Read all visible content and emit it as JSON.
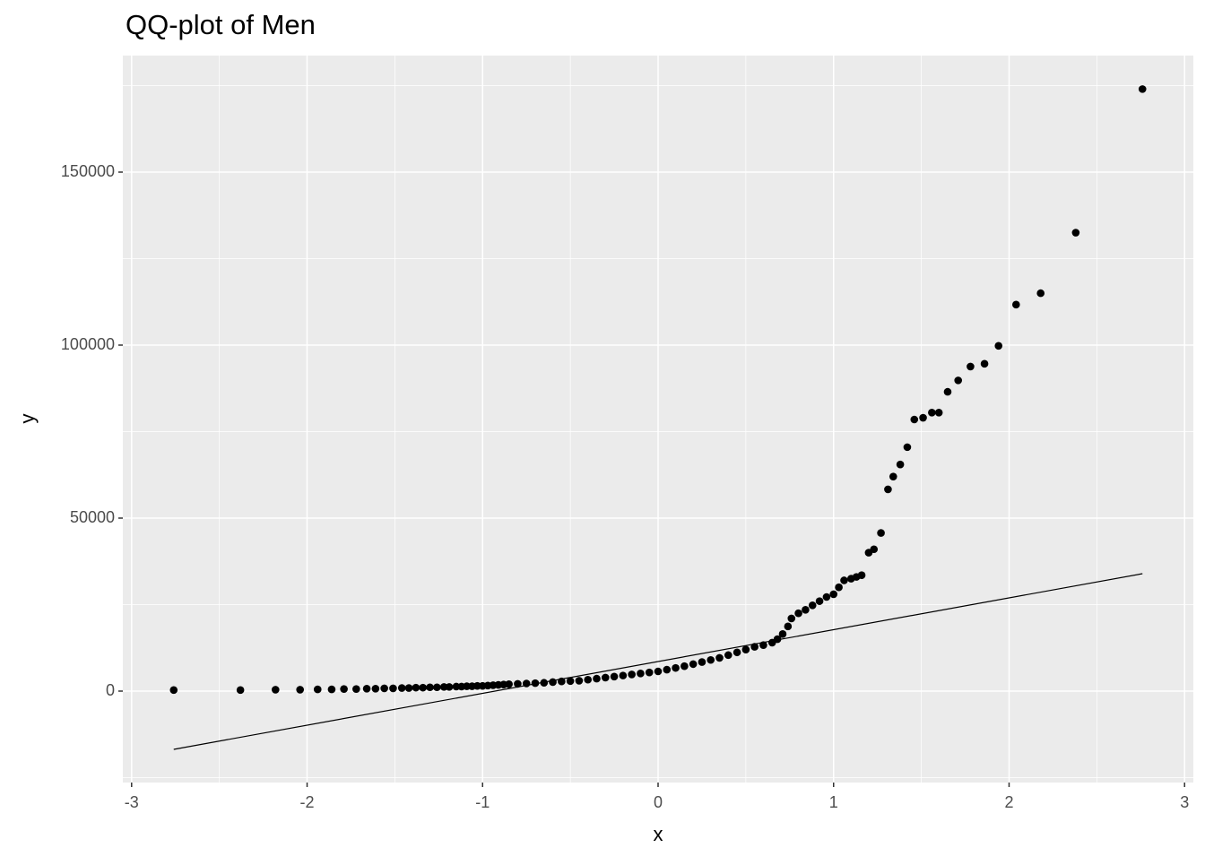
{
  "chart_data": {
    "type": "scatter",
    "title": "QQ-plot of Men",
    "x_label": "x",
    "y_label": "y",
    "x": [
      -2.76,
      -2.38,
      -2.18,
      -2.04,
      -1.94,
      -1.86,
      -1.79,
      -1.72,
      -1.66,
      -1.61,
      -1.56,
      -1.51,
      -1.46,
      -1.42,
      -1.38,
      -1.34,
      -1.3,
      -1.26,
      -1.22,
      -1.19,
      -1.15,
      -1.12,
      -1.09,
      -1.06,
      -1.03,
      -1.0,
      -0.97,
      -0.94,
      -0.91,
      -0.88,
      -0.85,
      -0.8,
      -0.75,
      -0.7,
      -0.65,
      -0.6,
      -0.55,
      -0.5,
      -0.45,
      -0.4,
      -0.35,
      -0.3,
      -0.25,
      -0.2,
      -0.15,
      -0.1,
      -0.05,
      0,
      0.05,
      0.1,
      0.15,
      0.2,
      0.25,
      0.3,
      0.35,
      0.4,
      0.45,
      0.5,
      0.55,
      0.6,
      0.65,
      0.68,
      0.71,
      0.74,
      0.76,
      0.8,
      0.84,
      0.88,
      0.92,
      0.96,
      1.0,
      1.03,
      1.06,
      1.1,
      1.13,
      1.16,
      1.2,
      1.23,
      1.27,
      1.31,
      1.34,
      1.38,
      1.42,
      1.46,
      1.51,
      1.56,
      1.6,
      1.65,
      1.71,
      1.78,
      1.86,
      1.94,
      2.04,
      2.18,
      2.38,
      2.76
    ],
    "values": [
      300,
      300,
      400,
      400,
      500,
      500,
      600,
      600,
      700,
      700,
      800,
      800,
      900,
      900,
      1000,
      1000,
      1100,
      1100,
      1200,
      1200,
      1300,
      1300,
      1400,
      1400,
      1500,
      1500,
      1600,
      1700,
      1800,
      1900,
      2000,
      2100,
      2200,
      2300,
      2400,
      2600,
      2800,
      2900,
      3000,
      3300,
      3600,
      3900,
      4200,
      4500,
      4800,
      5100,
      5400,
      5700,
      6200,
      6700,
      7200,
      7800,
      8400,
      9000,
      9600,
      10400,
      11200,
      12000,
      12800,
      13300,
      14000,
      15000,
      16500,
      18700,
      21000,
      22500,
      23500,
      24800,
      26000,
      27200,
      28000,
      30000,
      32000,
      32500,
      33000,
      33500,
      40000,
      41000,
      45700,
      58300,
      62000,
      65500,
      70500,
      78500,
      79000,
      80500,
      80500,
      86500,
      89800,
      93800,
      94600,
      99800,
      111700,
      115000,
      132500,
      174000
    ],
    "color": "#000000",
    "reference_line": {
      "x": [
        -2.76,
        2.76
      ],
      "values": [
        -16840,
        33940
      ],
      "color": "#000000"
    },
    "xlim": [
      -3.05,
      3.05
    ],
    "ylim": [
      -26425,
      183680
    ],
    "xticks": [
      -3,
      -2,
      -1,
      0,
      1,
      2,
      3
    ],
    "yticks": [
      0,
      50000,
      100000,
      150000
    ],
    "x_minor_ticks": [
      -2.5,
      -1.5,
      -0.5,
      0.5,
      1.5,
      2.5
    ],
    "y_minor_ticks": [
      -25000,
      25000,
      75000,
      125000,
      175000
    ],
    "grid": true
  }
}
